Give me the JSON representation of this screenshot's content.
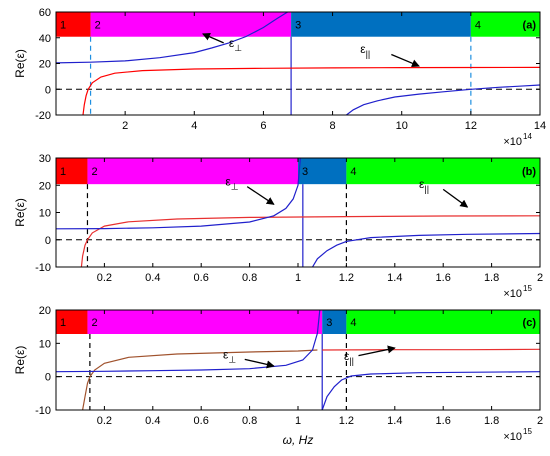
{
  "chart_data": [
    {
      "type": "line",
      "panel_label": "(a)",
      "ylabel": "Re(ε)",
      "xlim": [
        0,
        14
      ],
      "ylim": [
        -20,
        60
      ],
      "xticks": [
        2,
        4,
        6,
        8,
        10,
        12,
        14
      ],
      "yticks": [
        -20,
        0,
        20,
        40,
        60
      ],
      "x_multiplier": "×10",
      "x_multiplier_exp": "14",
      "regions": [
        {
          "label": "1",
          "from": 0,
          "to": 1.0,
          "color": "#ff0000"
        },
        {
          "label": "2",
          "from": 1.0,
          "to": 6.8,
          "color": "#ff00ff"
        },
        {
          "label": "3",
          "from": 6.8,
          "to": 12.0,
          "color": "#0070c0"
        },
        {
          "label": "4",
          "from": 12.0,
          "to": 14,
          "color": "#00ff00"
        }
      ],
      "dashed_vlines": [
        1.0,
        12.0
      ],
      "dashed_vline_color": "#1f8fe0",
      "series": [
        {
          "color": "#ff0000",
          "points": [
            [
              0.78,
              -20
            ],
            [
              0.82,
              -12
            ],
            [
              0.87,
              -5
            ],
            [
              0.93,
              0
            ],
            [
              1.05,
              5
            ],
            [
              1.3,
              9.5
            ],
            [
              1.7,
              12.5
            ],
            [
              2.5,
              14.5
            ],
            [
              4,
              15.7
            ],
            [
              6,
              16.3
            ],
            [
              8,
              16.6
            ],
            [
              10,
              16.8
            ],
            [
              12,
              16.9
            ],
            [
              14,
              17
            ]
          ]
        },
        {
          "color": "#2020cc",
          "points": [
            [
              0,
              20.5
            ],
            [
              1,
              21
            ],
            [
              2,
              22
            ],
            [
              3,
              24.5
            ],
            [
              4,
              28.5
            ],
            [
              4.5,
              32
            ],
            [
              5,
              36
            ],
            [
              5.5,
              41
            ],
            [
              6.0,
              48
            ],
            [
              6.4,
              55
            ],
            [
              6.7,
              60
            ]
          ]
        },
        {
          "color": "#2020cc",
          "points": [
            [
              8.4,
              -20
            ],
            [
              8.6,
              -16
            ],
            [
              8.9,
              -12
            ],
            [
              9.3,
              -9
            ],
            [
              9.8,
              -6
            ],
            [
              10.5,
              -3.8
            ],
            [
              11.2,
              -2
            ],
            [
              12,
              0
            ],
            [
              12.8,
              1.5
            ],
            [
              13.4,
              2.4
            ],
            [
              14,
              3.3
            ]
          ]
        }
      ],
      "vline_solid": {
        "x": 6.8,
        "color": "#2020cc"
      },
      "annotations": [
        {
          "text": "ε",
          "sub": "⊥",
          "text_at": [
            5.0,
            33
          ],
          "arrow_from": [
            4.85,
            36
          ],
          "arrow_to": [
            4.25,
            43
          ]
        },
        {
          "text": "ε",
          "sub": "||",
          "text_at": [
            8.8,
            28
          ],
          "arrow_from": [
            9.7,
            27
          ],
          "arrow_to": [
            10.5,
            18
          ]
        }
      ]
    },
    {
      "type": "line",
      "panel_label": "(b)",
      "ylabel": "Re(ε)",
      "xlim": [
        0,
        2
      ],
      "ylim": [
        -10,
        30
      ],
      "xticks": [
        0.2,
        0.4,
        0.6,
        0.8,
        1,
        1.2,
        1.4,
        1.6,
        1.8,
        2
      ],
      "yticks": [
        -10,
        0,
        10,
        20,
        30
      ],
      "x_multiplier": "×10",
      "x_multiplier_exp": "15",
      "regions": [
        {
          "label": "1",
          "from": 0,
          "to": 0.13,
          "color": "#ff0000"
        },
        {
          "label": "2",
          "from": 0.13,
          "to": 1.0,
          "color": "#ff00ff"
        },
        {
          "label": "3",
          "from": 1.0,
          "to": 1.2,
          "color": "#0070c0"
        },
        {
          "label": "4",
          "from": 1.2,
          "to": 2,
          "color": "#00ff00"
        }
      ],
      "dashed_vlines": [
        0.13,
        1.2
      ],
      "dashed_vline_color": "#000000",
      "series": [
        {
          "color": "#e83030",
          "points": [
            [
              0.105,
              -10
            ],
            [
              0.11,
              -6
            ],
            [
              0.12,
              -2
            ],
            [
              0.13,
              0
            ],
            [
              0.15,
              2.5
            ],
            [
              0.2,
              5
            ],
            [
              0.3,
              6.6
            ],
            [
              0.5,
              7.6
            ],
            [
              0.8,
              8.2
            ],
            [
              1.2,
              8.5
            ],
            [
              1.6,
              8.7
            ],
            [
              2,
              8.8
            ]
          ]
        },
        {
          "color": "#2020cc",
          "points": [
            [
              0,
              4
            ],
            [
              0.2,
              4.1
            ],
            [
              0.4,
              4.4
            ],
            [
              0.6,
              5
            ],
            [
              0.8,
              6.5
            ],
            [
              0.9,
              8.8
            ],
            [
              0.95,
              11.5
            ],
            [
              0.98,
              15
            ],
            [
              1.0,
              20
            ],
            [
              1.01,
              30
            ]
          ]
        },
        {
          "color": "#2020cc",
          "points": [
            [
              1.06,
              -10
            ],
            [
              1.08,
              -7
            ],
            [
              1.12,
              -4
            ],
            [
              1.16,
              -2
            ],
            [
              1.2,
              -0.6
            ],
            [
              1.3,
              0.8
            ],
            [
              1.5,
              1.6
            ],
            [
              1.7,
              2.0
            ],
            [
              2,
              2.3
            ]
          ]
        }
      ],
      "vline_solid": {
        "x": 1.02,
        "color": "#2020cc"
      },
      "annotations": [
        {
          "text": "ε",
          "sub": "⊥",
          "text_at": [
            0.7,
            20
          ],
          "arrow_from": [
            0.79,
            19.5
          ],
          "arrow_to": [
            0.9,
            13
          ]
        },
        {
          "text": "ε",
          "sub": "||",
          "text_at": [
            1.5,
            19
          ],
          "arrow_from": [
            1.6,
            18.5
          ],
          "arrow_to": [
            1.7,
            12
          ]
        }
      ]
    },
    {
      "type": "line",
      "panel_label": "(c)",
      "ylabel": "Re(ε)",
      "xlabel": "ω, Hz",
      "xlim": [
        0,
        2
      ],
      "ylim": [
        -10,
        20
      ],
      "xticks": [
        0.2,
        0.4,
        0.6,
        0.8,
        1,
        1.2,
        1.4,
        1.6,
        1.8,
        2
      ],
      "yticks": [
        -10,
        0,
        10,
        20
      ],
      "x_multiplier": "×10",
      "x_multiplier_exp": "15",
      "regions": [
        {
          "label": "1",
          "from": 0,
          "to": 0.13,
          "color": "#ff0000"
        },
        {
          "label": "2",
          "from": 0.13,
          "to": 1.1,
          "color": "#ff00ff"
        },
        {
          "label": "3",
          "from": 1.1,
          "to": 1.2,
          "color": "#0070c0"
        },
        {
          "label": "4",
          "from": 1.2,
          "to": 2,
          "color": "#00ff00"
        }
      ],
      "dashed_vlines": [
        0.14,
        1.2
      ],
      "dashed_vline_color": "#000000",
      "series": [
        {
          "color": "#a0522d",
          "points": [
            [
              0.11,
              -10
            ],
            [
              0.12,
              -6
            ],
            [
              0.13,
              -2
            ],
            [
              0.14,
              0
            ],
            [
              0.16,
              2
            ],
            [
              0.2,
              4
            ],
            [
              0.3,
              5.8
            ],
            [
              0.5,
              6.8
            ],
            [
              0.8,
              7.4
            ],
            [
              1.0,
              7.7
            ],
            [
              1.08,
              8
            ]
          ]
        },
        {
          "color": "#e83030",
          "points": [
            [
              1.1,
              8
            ],
            [
              1.4,
              8.1
            ],
            [
              1.7,
              8.1
            ],
            [
              2,
              8.2
            ]
          ]
        },
        {
          "color": "#2020cc",
          "points": [
            [
              0,
              1.5
            ],
            [
              0.2,
              1.6
            ],
            [
              0.4,
              1.8
            ],
            [
              0.6,
              2
            ],
            [
              0.8,
              2.4
            ],
            [
              0.95,
              3.4
            ],
            [
              1.02,
              5
            ],
            [
              1.06,
              8
            ],
            [
              1.08,
              13
            ],
            [
              1.09,
              20
            ]
          ]
        },
        {
          "color": "#2020cc",
          "points": [
            [
              1.1,
              -10
            ],
            [
              1.12,
              -6
            ],
            [
              1.15,
              -3
            ],
            [
              1.18,
              -1
            ],
            [
              1.22,
              0.2
            ],
            [
              1.3,
              0.8
            ],
            [
              1.5,
              1.2
            ],
            [
              2,
              1.5
            ]
          ]
        }
      ],
      "vline_solid": {
        "x": 1.1,
        "color": "#2020cc"
      },
      "annotations": [
        {
          "text": "ε",
          "sub": "⊥",
          "text_at": [
            0.69,
            5.4
          ],
          "arrow_from": [
            0.78,
            5.2
          ],
          "arrow_to": [
            0.9,
            3.2
          ]
        },
        {
          "text": "ε",
          "sub": "||",
          "text_at": [
            1.19,
            5
          ],
          "arrow_from": [
            1.25,
            6.3
          ],
          "arrow_to": [
            1.4,
            8.6
          ]
        }
      ]
    }
  ]
}
